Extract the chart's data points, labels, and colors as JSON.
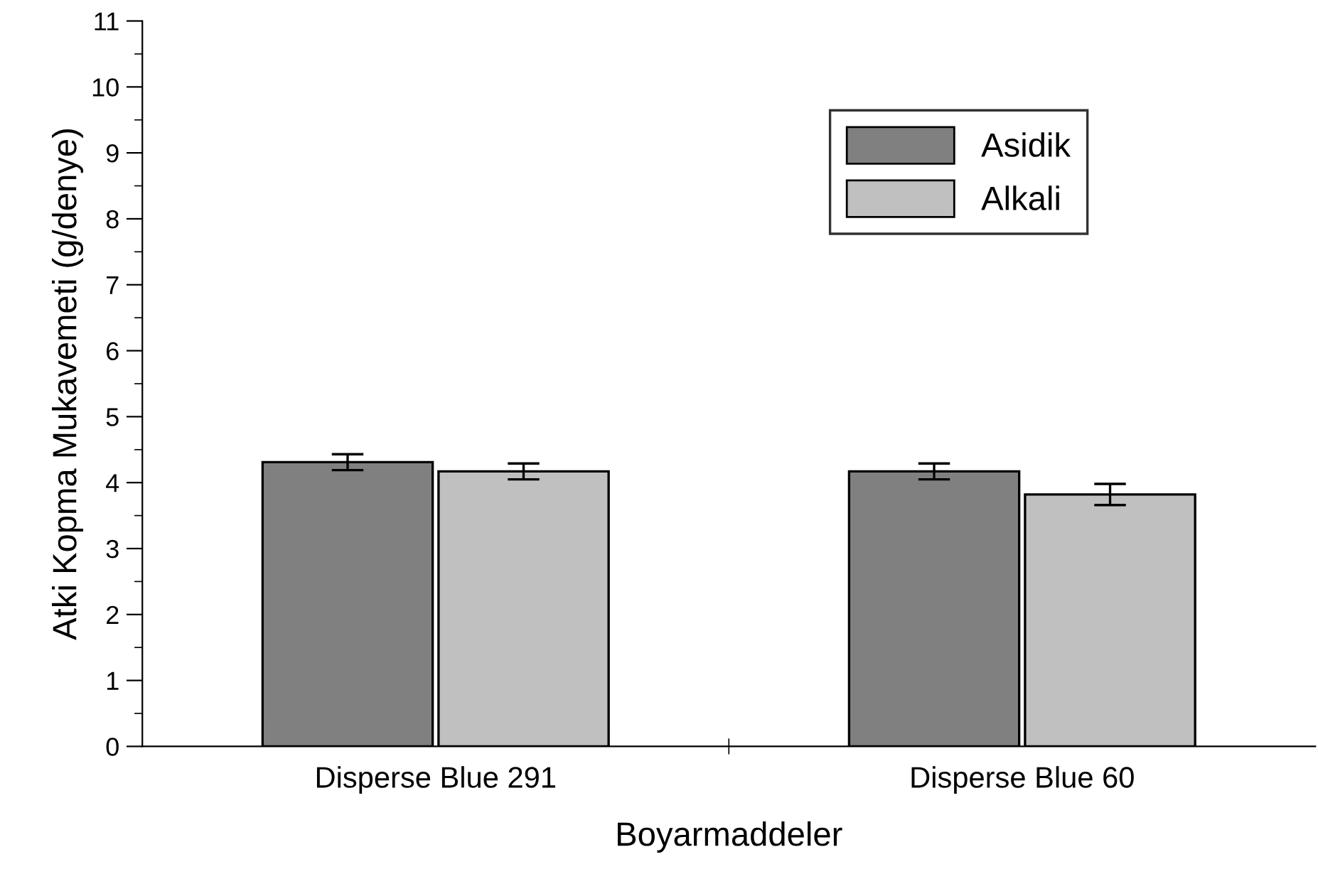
{
  "chart_data": {
    "type": "bar",
    "xlabel": "Boyarmaddeler",
    "ylabel": "Atki Kopma Mukavemeti (g/denye)",
    "categories": [
      "Disperse Blue 291",
      "Disperse Blue 60"
    ],
    "series": [
      {
        "name": "Asidik",
        "color": "#808080",
        "values": [
          4.31,
          4.17
        ],
        "errors": [
          0.12,
          0.12
        ]
      },
      {
        "name": "Alkali",
        "color": "#c0c0c0",
        "values": [
          4.17,
          3.82
        ],
        "errors": [
          0.12,
          0.16
        ]
      }
    ],
    "ylim": [
      0,
      11
    ],
    "yticks": [
      0,
      1,
      2,
      3,
      4,
      5,
      6,
      7,
      8,
      9,
      10,
      11
    ],
    "grid": false,
    "legend": "top right"
  }
}
